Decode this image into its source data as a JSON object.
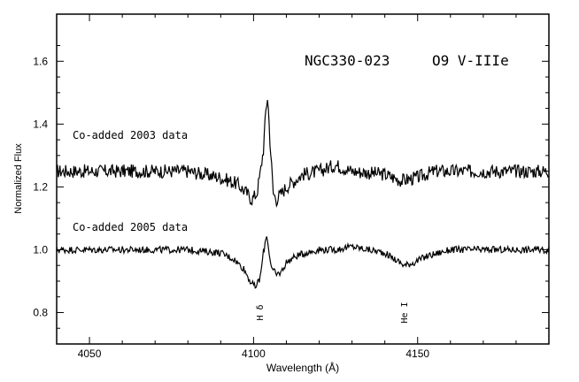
{
  "chart_data": {
    "type": "line",
    "title": "NGC330-023",
    "subtitle": "O9 V-IIIe",
    "xlabel": "Wavelength (Å)",
    "ylabel": "Normalized Flux",
    "xlim": [
      4040,
      4190
    ],
    "ylim": [
      0.7,
      1.75
    ],
    "x_ticks": [
      4050,
      4100,
      4150
    ],
    "x_tick_labels": [
      "4050",
      "4100",
      "4150"
    ],
    "y_ticks": [
      0.8,
      1.0,
      1.2,
      1.4,
      1.6
    ],
    "y_tick_labels": [
      "0.8",
      "1.0",
      "1.2",
      "1.4",
      "1.6"
    ],
    "grid": false,
    "series": [
      {
        "name": "Co-added 2003 data",
        "x": [
          4040,
          4050,
          4060,
          4070,
          4080,
          4090,
          4095,
          4098,
          4099.5,
          4101,
          4102,
          4103,
          4103.8,
          4104.3,
          4105,
          4106,
          4107,
          4110,
          4115,
          4120,
          4125,
          4130,
          4140,
          4145,
          4150,
          4155,
          4160,
          4170,
          4180,
          4190
        ],
        "values": [
          1.25,
          1.25,
          1.25,
          1.25,
          1.25,
          1.23,
          1.21,
          1.18,
          1.16,
          1.18,
          1.24,
          1.32,
          1.45,
          1.49,
          1.35,
          1.18,
          1.16,
          1.2,
          1.24,
          1.25,
          1.27,
          1.25,
          1.24,
          1.22,
          1.23,
          1.25,
          1.25,
          1.25,
          1.25,
          1.25
        ],
        "color": "#000000"
      },
      {
        "name": "Co-added 2005 data",
        "x": [
          4040,
          4050,
          4060,
          4070,
          4080,
          4090,
          4094,
          4097,
          4099,
          4100.5,
          4102,
          4103,
          4104,
          4104.5,
          4105.5,
          4107,
          4108.5,
          4110,
          4113,
          4116,
          4120,
          4125,
          4130,
          4135,
          4140,
          4143,
          4146,
          4149,
          4153,
          4160,
          4170,
          4180,
          4190
        ],
        "values": [
          1.0,
          1.0,
          1.0,
          1.0,
          1.0,
          0.99,
          0.97,
          0.94,
          0.9,
          0.88,
          0.91,
          0.99,
          1.05,
          1.01,
          0.94,
          0.92,
          0.93,
          0.96,
          0.98,
          0.99,
          1.0,
          1.0,
          1.01,
          1.0,
          0.99,
          0.97,
          0.95,
          0.96,
          0.98,
          1.0,
          1.0,
          1.0,
          1.0
        ],
        "color": "#000000"
      }
    ],
    "annotations": [
      {
        "text": "H δ",
        "x": 4102,
        "y": 0.8
      },
      {
        "text": "He I",
        "x": 4146,
        "y": 0.8
      }
    ]
  }
}
